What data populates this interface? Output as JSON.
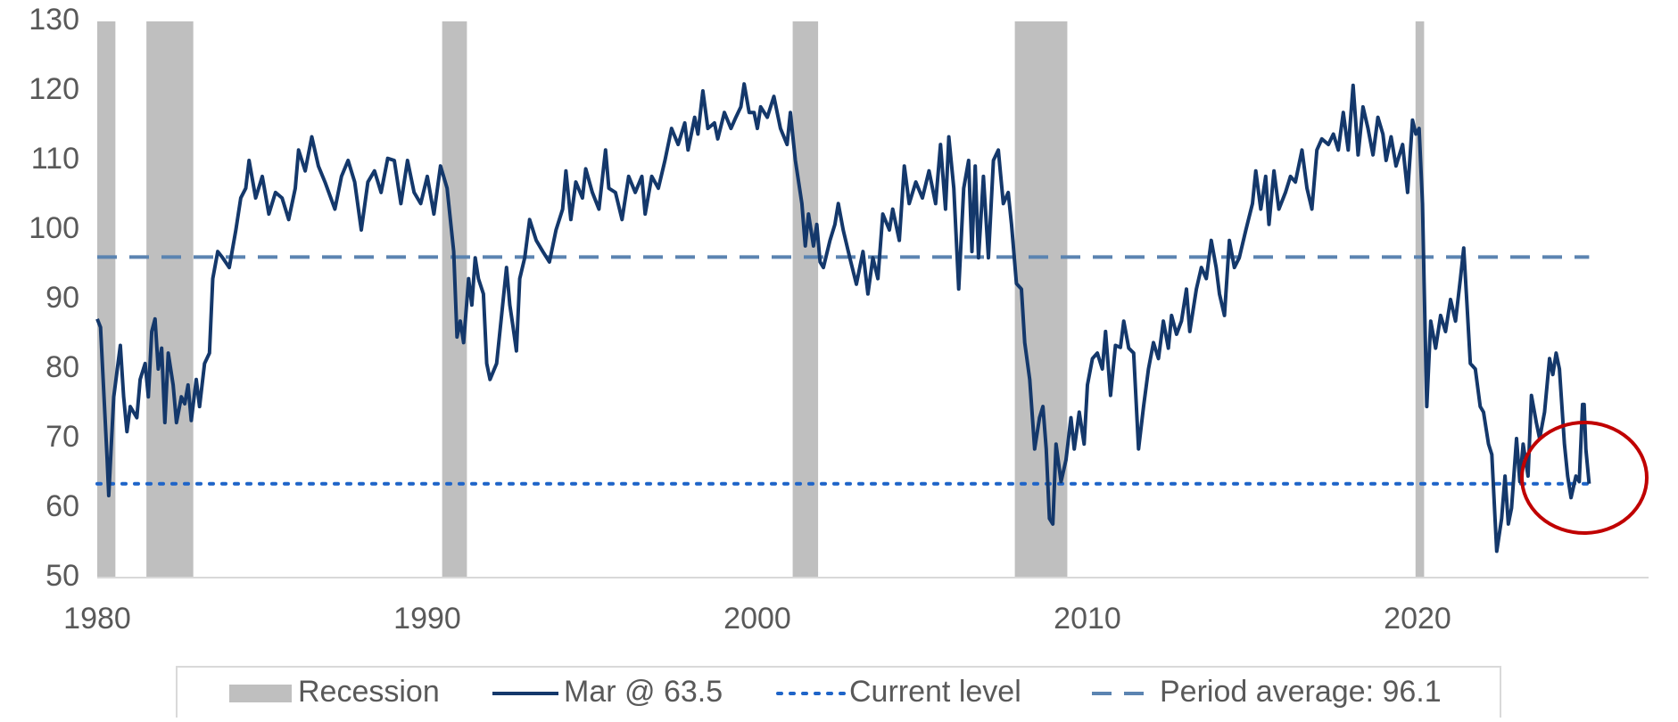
{
  "chart_data": {
    "type": "line",
    "xlim": [
      1980,
      2027
    ],
    "xticks": [
      1980,
      1990,
      2000,
      2010,
      2020
    ],
    "ylim": [
      50,
      130
    ],
    "yticks": [
      50,
      60,
      70,
      80,
      90,
      100,
      110,
      120,
      130
    ],
    "grid": false,
    "recession": {
      "name": "Recession",
      "color": "#bfbfbf",
      "spans": [
        [
          1980.0,
          1980.55
        ],
        [
          1981.49,
          1982.91
        ],
        [
          1990.45,
          1991.2
        ],
        [
          2001.07,
          2001.84
        ],
        [
          2007.8,
          2009.39
        ],
        [
          2019.94,
          2020.2
        ]
      ]
    },
    "reference_lines": [
      {
        "name": "Current level",
        "value": 63.5,
        "style": "dotted",
        "color": "#1e64c8"
      },
      {
        "name": "Period average: 96.1",
        "value": 96.1,
        "style": "dashed",
        "color": "#5b84b1"
      }
    ],
    "series": [
      {
        "name": "Mar @ 63.5",
        "color": "#14386b",
        "x": [
          1980.0,
          1980.1,
          1980.3,
          1980.35,
          1980.5,
          1980.7,
          1980.8,
          1980.9,
          1981.0,
          1981.2,
          1981.3,
          1981.45,
          1981.55,
          1981.65,
          1981.75,
          1981.85,
          1981.95,
          1982.05,
          1982.15,
          1982.3,
          1982.4,
          1982.55,
          1982.65,
          1982.75,
          1982.85,
          1983.0,
          1983.1,
          1983.25,
          1983.4,
          1983.5,
          1983.65,
          1983.8,
          1984.0,
          1984.2,
          1984.35,
          1984.5,
          1984.6,
          1984.8,
          1985.0,
          1985.2,
          1985.4,
          1985.6,
          1985.8,
          1986.0,
          1986.1,
          1986.3,
          1986.5,
          1986.7,
          1986.9,
          1987.2,
          1987.4,
          1987.6,
          1987.8,
          1988.0,
          1988.2,
          1988.4,
          1988.6,
          1988.8,
          1989.0,
          1989.2,
          1989.4,
          1989.6,
          1989.8,
          1990.0,
          1990.2,
          1990.4,
          1990.6,
          1990.8,
          1990.9,
          1991.0,
          1991.1,
          1991.25,
          1991.35,
          1991.45,
          1991.55,
          1991.7,
          1991.8,
          1991.9,
          1992.1,
          1992.2,
          1992.4,
          1992.5,
          1992.6,
          1992.7,
          1992.8,
          1992.95,
          1993.1,
          1993.3,
          1993.5,
          1993.7,
          1993.9,
          1994.1,
          1994.2,
          1994.35,
          1994.5,
          1994.7,
          1994.8,
          1995.0,
          1995.2,
          1995.4,
          1995.5,
          1995.7,
          1995.9,
          1996.1,
          1996.3,
          1996.5,
          1996.6,
          1996.8,
          1997.0,
          1997.2,
          1997.4,
          1997.6,
          1997.8,
          1997.9,
          1998.1,
          1998.2,
          1998.35,
          1998.5,
          1998.7,
          1998.8,
          1999.0,
          1999.2,
          1999.35,
          1999.5,
          1999.6,
          1999.75,
          1999.9,
          2000.0,
          2000.1,
          2000.3,
          2000.5,
          2000.7,
          2000.9,
          2001.0,
          2001.15,
          2001.35,
          2001.45,
          2001.55,
          2001.7,
          2001.8,
          2001.9,
          2002.0,
          2002.2,
          2002.35,
          2002.45,
          2002.6,
          2002.8,
          2003.0,
          2003.2,
          2003.35,
          2003.5,
          2003.65,
          2003.8,
          2004.0,
          2004.1,
          2004.3,
          2004.45,
          2004.6,
          2004.8,
          2005.0,
          2005.2,
          2005.4,
          2005.55,
          2005.7,
          2005.8,
          2005.95,
          2006.1,
          2006.25,
          2006.4,
          2006.5,
          2006.6,
          2006.7,
          2006.85,
          2007.0,
          2007.15,
          2007.3,
          2007.45,
          2007.6,
          2007.7,
          2007.85,
          2008.0,
          2008.1,
          2008.25,
          2008.4,
          2008.55,
          2008.65,
          2008.75,
          2008.85,
          2008.95,
          2009.05,
          2009.2,
          2009.35,
          2009.5,
          2009.6,
          2009.75,
          2009.9,
          2010.0,
          2010.15,
          2010.3,
          2010.45,
          2010.55,
          2010.7,
          2010.85,
          2011.0,
          2011.1,
          2011.25,
          2011.4,
          2011.55,
          2011.7,
          2011.85,
          2012.0,
          2012.15,
          2012.3,
          2012.45,
          2012.55,
          2012.7,
          2012.85,
          2013.0,
          2013.1,
          2013.3,
          2013.45,
          2013.6,
          2013.75,
          2013.9,
          2014.0,
          2014.15,
          2014.3,
          2014.45,
          2014.6,
          2014.8,
          2015.0,
          2015.1,
          2015.25,
          2015.4,
          2015.5,
          2015.65,
          2015.8,
          2016.0,
          2016.15,
          2016.3,
          2016.5,
          2016.65,
          2016.8,
          2016.95,
          2017.1,
          2017.3,
          2017.45,
          2017.6,
          2017.75,
          2017.9,
          2018.05,
          2018.2,
          2018.35,
          2018.5,
          2018.65,
          2018.8,
          2018.95,
          2019.05,
          2019.2,
          2019.35,
          2019.55,
          2019.7,
          2019.85,
          2019.95,
          2020.05,
          2020.15,
          2020.2,
          2020.28,
          2020.4,
          2020.55,
          2020.7,
          2020.85,
          2021.0,
          2021.15,
          2021.3,
          2021.4,
          2021.5,
          2021.6,
          2021.75,
          2021.9,
          2022.0,
          2022.15,
          2022.25,
          2022.35,
          2022.4,
          2022.55,
          2022.65,
          2022.75,
          2022.85,
          2023.0,
          2023.1,
          2023.2,
          2023.35,
          2023.45,
          2023.6,
          2023.7,
          2023.85,
          2024.0,
          2024.1,
          2024.2,
          2024.3,
          2024.45,
          2024.55,
          2024.65,
          2024.8,
          2024.9,
          2025.0,
          2025.05,
          2025.1,
          2025.2
        ],
        "values": [
          87.2,
          86,
          67,
          61.8,
          76,
          83.4,
          76,
          71,
          74.6,
          73,
          78.5,
          80.8,
          76,
          85.4,
          87.2,
          80,
          83,
          72.3,
          82.3,
          77.7,
          72.3,
          76,
          75,
          77.7,
          72.6,
          78.5,
          74.6,
          80.8,
          82.3,
          93,
          96.9,
          96,
          94.6,
          100,
          104.6,
          106,
          110,
          104.6,
          107.7,
          102.3,
          105.4,
          104.6,
          101.5,
          106,
          111.5,
          108.5,
          113.4,
          109.2,
          106.9,
          103,
          107.7,
          110,
          106.9,
          100,
          106.9,
          108.5,
          105.4,
          110.3,
          110,
          103.8,
          110,
          105.4,
          103.8,
          107.7,
          102.3,
          109.2,
          106,
          96.9,
          84.6,
          86.9,
          83.8,
          93,
          89.2,
          96,
          93,
          90.8,
          80.8,
          78.5,
          80.8,
          85.4,
          94.6,
          89.2,
          86,
          82.6,
          93,
          96,
          101.5,
          98.5,
          96.9,
          95.4,
          100,
          103,
          108.5,
          101.5,
          106.9,
          104.6,
          108.8,
          105.4,
          103,
          111.5,
          106,
          105.4,
          101.5,
          107.7,
          105.4,
          107.7,
          102.3,
          107.7,
          106,
          110,
          114.6,
          112.3,
          115.4,
          111.5,
          116.2,
          113.8,
          120,
          114.6,
          115.4,
          113.1,
          116.9,
          114.6,
          116.2,
          117.7,
          121,
          116.9,
          116.9,
          114.6,
          117.7,
          116.2,
          119.2,
          114.6,
          112.3,
          116.9,
          110,
          103.8,
          97.7,
          102.3,
          97.7,
          100.8,
          95.4,
          94.6,
          98.5,
          100.8,
          103.8,
          100,
          96,
          92.2,
          96.9,
          90.8,
          96,
          93,
          102.3,
          100,
          103,
          98.5,
          109.2,
          103.8,
          106.9,
          104.6,
          108.5,
          103.8,
          112.3,
          103,
          113.4,
          106,
          91.5,
          106,
          110,
          96.9,
          109.2,
          96,
          107.7,
          96,
          110,
          111.5,
          103.8,
          105.4,
          100.8,
          92.3,
          91.5,
          83.8,
          78.5,
          68.5,
          73,
          74.6,
          68.5,
          58.5,
          57.7,
          69.2,
          63.8,
          66.9,
          73,
          68.5,
          73.8,
          69.2,
          77.7,
          81.5,
          82.3,
          80,
          85.4,
          76.2,
          83.4,
          83.1,
          86.9,
          83,
          82.3,
          68.5,
          74.6,
          80,
          83.8,
          81.5,
          86.9,
          83,
          87.7,
          85,
          86.9,
          91.5,
          85.4,
          91.5,
          94.6,
          93,
          98.5,
          94.6,
          90.8,
          87.7,
          98.5,
          94.6,
          96,
          100,
          103.8,
          108.5,
          103,
          107.7,
          100.8,
          108.5,
          103,
          105.4,
          107.7,
          106.9,
          111.5,
          106,
          103,
          111.5,
          113.1,
          112.3,
          113.8,
          111.5,
          116.9,
          111.5,
          120.8,
          110.8,
          117.7,
          114.6,
          110.8,
          116.2,
          113.8,
          110,
          113.4,
          109.2,
          112.3,
          105.4,
          115.8,
          113.8,
          114.6,
          103.8,
          92.3,
          74.6,
          86.9,
          83,
          87.7,
          85.4,
          90,
          86.9,
          93,
          97.4,
          89.2,
          80.8,
          80,
          74.6,
          73.8,
          69.2,
          67.7,
          58.5,
          53.8,
          58.5,
          64.6,
          57.7,
          60,
          70,
          63.8,
          69.2,
          64.6,
          76.2,
          72.3,
          70,
          73.8,
          81.5,
          79.2,
          82.3,
          80,
          69.2,
          64.6,
          61.5,
          64.6,
          63.8,
          74.9,
          74.9,
          68.5,
          63.5
        ]
      }
    ]
  }
}
